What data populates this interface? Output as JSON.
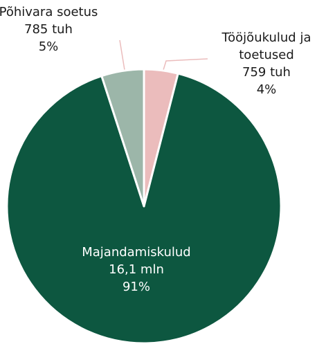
{
  "chart_data": {
    "type": "pie",
    "categories": [
      "Tööjõukulud ja toetused",
      "Majandamiskulud",
      "Põhivara soetus"
    ],
    "amounts": [
      "759 tuh",
      "16,1 mln",
      "785 tuh"
    ],
    "values": [
      4,
      91,
      5
    ],
    "value_labels": [
      "4%",
      "91%",
      "5%"
    ],
    "colors": [
      "#ebbcbc",
      "#0d5740",
      "#9cb6a9"
    ]
  }
}
